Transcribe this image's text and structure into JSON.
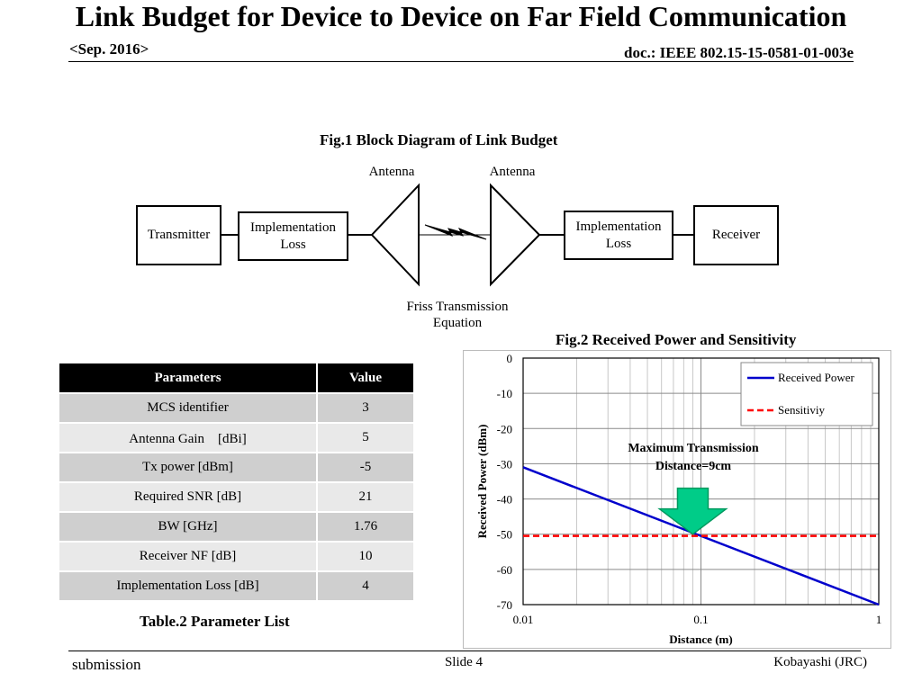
{
  "header": {
    "date": "<Sep. 2016>",
    "doc_id": "doc.: IEEE 802.15-15-0581-01-003e"
  },
  "slide_title": "Link Budget for Device to Device on Far Field Communication",
  "fig1": {
    "caption": "Fig.1 Block Diagram of Link Budget",
    "transmitter": "Transmitter",
    "impl_loss_left": "Implementation Loss",
    "antenna_left": "Antenna",
    "antenna_right": "Antenna",
    "impl_loss_right": "Implementation Loss",
    "receiver": "Receiver",
    "friss_line1": "Friss Transmission",
    "friss_line2": "Equation"
  },
  "table": {
    "headers": [
      "Parameters",
      "Value"
    ],
    "rows": [
      [
        "MCS identifier",
        "3"
      ],
      [
        "Antenna Gain　[dBi]",
        "5"
      ],
      [
        "Tx power [dBm]",
        "-5"
      ],
      [
        "Required SNR [dB]",
        "21"
      ],
      [
        "BW [GHz]",
        "1.76"
      ],
      [
        "Receiver NF [dB]",
        "10"
      ],
      [
        "Implementation Loss [dB]",
        "4"
      ]
    ],
    "caption": "Table.2 Parameter List"
  },
  "fig2_caption": "Fig.2 Received Power and Sensitivity",
  "chart_data": {
    "type": "line",
    "xlabel": "Distance (m)",
    "ylabel": "Received Power (dBm)",
    "x_scale": "log",
    "xlim": [
      0.01,
      1
    ],
    "ylim": [
      -70,
      0
    ],
    "x_ticks": [
      "0.01",
      "0.1",
      "1"
    ],
    "y_ticks": [
      "0",
      "-10",
      "-20",
      "-30",
      "-40",
      "-50",
      "-60",
      "-70"
    ],
    "grid": true,
    "legend_position": "top-right",
    "series": [
      {
        "name": "Received Power",
        "color": "#0000cc",
        "style": "solid",
        "x": [
          0.01,
          1
        ],
        "y": [
          -31,
          -70
        ]
      },
      {
        "name": "Sensitiviy",
        "color": "#ff0000",
        "style": "dashed",
        "x": [
          0.01,
          1
        ],
        "y": [
          -50.5,
          -50.5
        ]
      }
    ],
    "annotation": {
      "line1": "Maximum Transmission",
      "line2": "Distance=9cm",
      "x": 0.09,
      "y": -50.5
    }
  },
  "footer": {
    "left": "submission",
    "center": "Slide 4",
    "right": "Kobayashi (JRC)"
  }
}
